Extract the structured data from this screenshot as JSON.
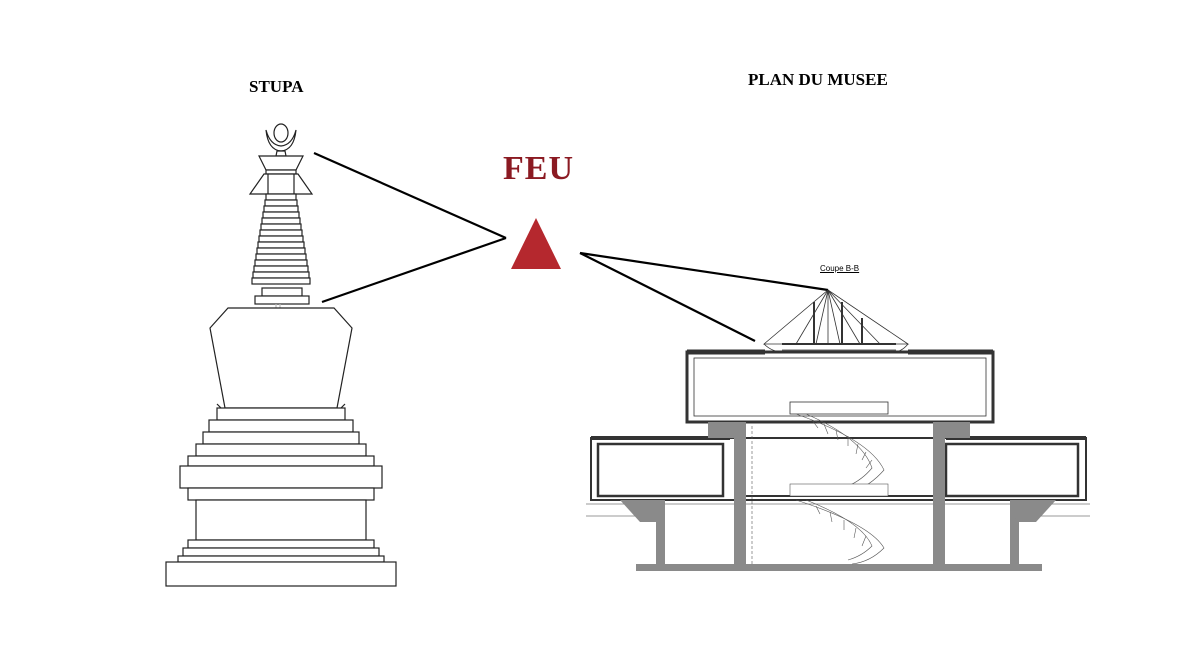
{
  "diagram": {
    "left_title": "STUPA",
    "right_title": "PLAN DU MUSEE",
    "center_label": "FEU",
    "section_label": "Coupe B-B"
  },
  "colors": {
    "fire_text": "#8b1a22",
    "fire_triangle": "#b5282e",
    "concrete": "#8a8a8a",
    "line": "#000000"
  },
  "icons": {
    "fire_symbol": "red-triangle-icon"
  }
}
